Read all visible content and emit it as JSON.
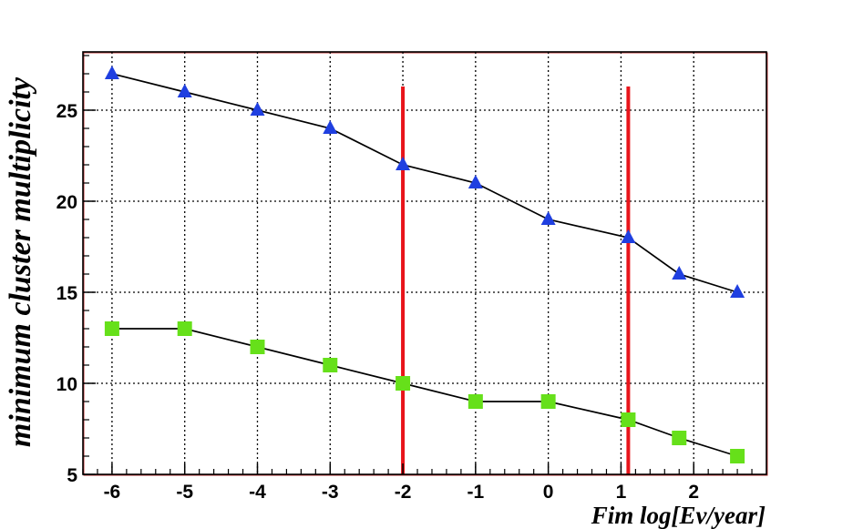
{
  "chart_data": {
    "type": "line",
    "title": "",
    "xlabel": "Fim log[Ev/year]",
    "ylabel": "minimum cluster multiplicity",
    "xlim": [
      -6.4,
      3.0
    ],
    "ylim": [
      5,
      28.2
    ],
    "x_ticks": [
      -6,
      -5,
      -4,
      -3,
      -2,
      -1,
      0,
      1,
      2
    ],
    "x_tick_labels": [
      "-6",
      "-5",
      "-4",
      "-3",
      "-2",
      "-1",
      "0",
      "1",
      "2"
    ],
    "y_ticks": [
      5,
      10,
      15,
      20,
      25
    ],
    "y_tick_labels": [
      "5",
      "10",
      "15",
      "20",
      "25"
    ],
    "grid": true,
    "series": [
      {
        "marker": "triangle",
        "color": "#1f3fe0",
        "x": [
          -6,
          -5,
          -4,
          -3,
          -2,
          -1,
          0,
          1.1,
          1.8,
          2.6
        ],
        "y": [
          27,
          26,
          25,
          24,
          22,
          21,
          19,
          18,
          16,
          15
        ]
      },
      {
        "marker": "square",
        "color": "#66e01a",
        "x": [
          -6,
          -5,
          -4,
          -3,
          -2,
          -1,
          0,
          1.1,
          1.8,
          2.6
        ],
        "y": [
          13,
          13,
          12,
          11,
          10,
          9,
          9,
          8,
          7,
          6
        ]
      }
    ],
    "vertical_lines": [
      {
        "x": -2,
        "y_top": 26.3,
        "color": "#e8141a"
      },
      {
        "x": 1.1,
        "y_top": 26.3,
        "color": "#e8141a"
      }
    ]
  }
}
